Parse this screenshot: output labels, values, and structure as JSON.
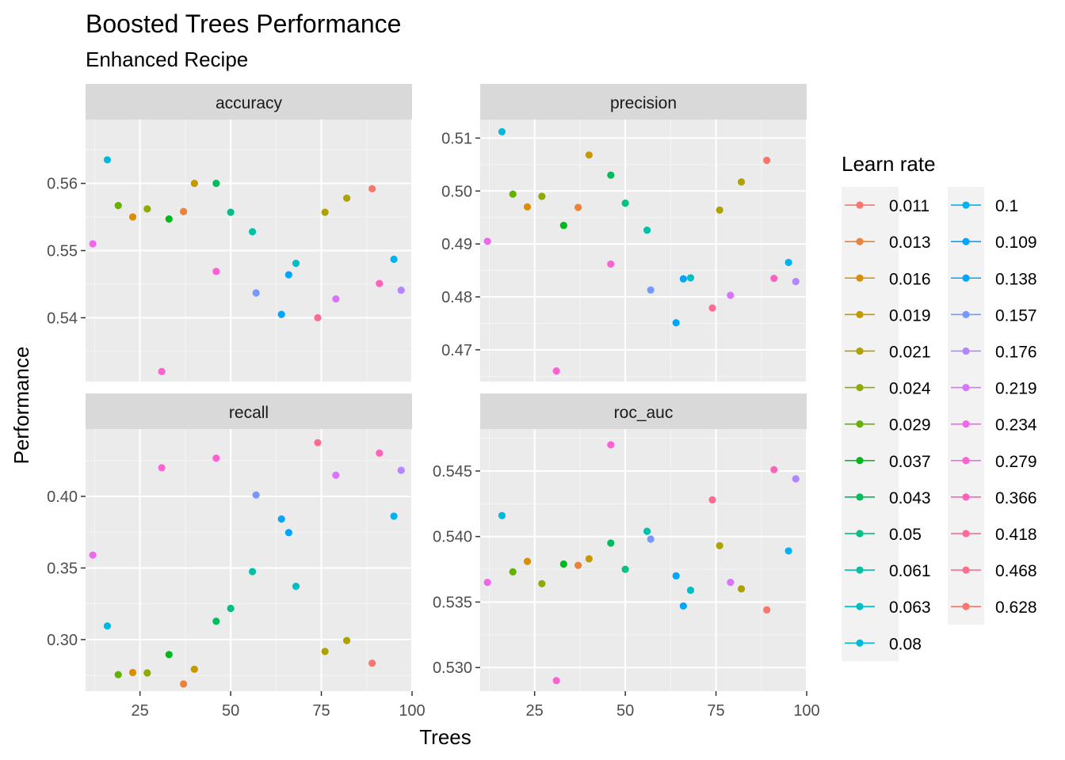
{
  "chart_data": {
    "type": "scatter",
    "title": "Boosted Trees Performance",
    "subtitle": "Enhanced Recipe",
    "xlabel": "Trees",
    "ylabel": "Performance",
    "x_ticks": [
      25,
      50,
      75,
      100
    ],
    "xlim": [
      10,
      100
    ],
    "legend": {
      "title": "Learn rate",
      "placement": "right",
      "entries": [
        {
          "label": "0.011",
          "color": "#F8766D"
        },
        {
          "label": "0.013",
          "color": "#EC8239"
        },
        {
          "label": "0.016",
          "color": "#DB8E00"
        },
        {
          "label": "0.019",
          "color": "#C79800"
        },
        {
          "label": "0.021",
          "color": "#AEA200"
        },
        {
          "label": "0.024",
          "color": "#8FAA00"
        },
        {
          "label": "0.029",
          "color": "#64B200"
        },
        {
          "label": "0.037",
          "color": "#00B81B"
        },
        {
          "label": "0.043",
          "color": "#00BD5C"
        },
        {
          "label": "0.05",
          "color": "#00C085"
        },
        {
          "label": "0.061",
          "color": "#00C1A7"
        },
        {
          "label": "0.063",
          "color": "#00BFC4"
        },
        {
          "label": "0.08",
          "color": "#00BADE"
        },
        {
          "label": "0.1",
          "color": "#00B2F3"
        },
        {
          "label": "0.109",
          "color": "#00A6FF"
        },
        {
          "label": "0.138",
          "color": "#00A5FF"
        },
        {
          "label": "0.157",
          "color": "#7698FF"
        },
        {
          "label": "0.176",
          "color": "#B385FF"
        },
        {
          "label": "0.219",
          "color": "#D874FD"
        },
        {
          "label": "0.234",
          "color": "#EF67EB"
        },
        {
          "label": "0.279",
          "color": "#FD61D3"
        },
        {
          "label": "0.366",
          "color": "#FF62BC"
        },
        {
          "label": "0.418",
          "color": "#FF6A98"
        },
        {
          "label": "0.468",
          "color": "#FF6C90"
        },
        {
          "label": "0.628",
          "color": "#F8766D"
        }
      ]
    },
    "panels": [
      {
        "name": "accuracy",
        "y_ticks": [
          "0.54",
          "0.55",
          "0.56"
        ],
        "y_tick_values": [
          0.54,
          0.55,
          0.56
        ],
        "ylim": [
          0.5305,
          0.5695
        ],
        "points": [
          {
            "x": 12,
            "y": 0.551,
            "color": "#EF67EB"
          },
          {
            "x": 16,
            "y": 0.5635,
            "color": "#00BADE"
          },
          {
            "x": 19,
            "y": 0.5567,
            "color": "#64B200"
          },
          {
            "x": 23,
            "y": 0.555,
            "color": "#DB8E00"
          },
          {
            "x": 27,
            "y": 0.5562,
            "color": "#8FAA00"
          },
          {
            "x": 31,
            "y": 0.532,
            "color": "#FD61D3"
          },
          {
            "x": 33,
            "y": 0.5547,
            "color": "#00B81B"
          },
          {
            "x": 37,
            "y": 0.5558,
            "color": "#EC8239"
          },
          {
            "x": 40,
            "y": 0.56,
            "color": "#C79800"
          },
          {
            "x": 46,
            "y": 0.56,
            "color": "#00BD5C"
          },
          {
            "x": 46,
            "y": 0.5469,
            "color": "#FD61D3"
          },
          {
            "x": 50,
            "y": 0.5557,
            "color": "#00C085"
          },
          {
            "x": 56,
            "y": 0.5528,
            "color": "#00C1A7"
          },
          {
            "x": 57,
            "y": 0.5437,
            "color": "#7698FF"
          },
          {
            "x": 64,
            "y": 0.5405,
            "color": "#00A6FF"
          },
          {
            "x": 66,
            "y": 0.5464,
            "color": "#00A5FF"
          },
          {
            "x": 68,
            "y": 0.5481,
            "color": "#00BFC4"
          },
          {
            "x": 74,
            "y": 0.54,
            "color": "#FF6C90"
          },
          {
            "x": 76,
            "y": 0.5557,
            "color": "#AEA200"
          },
          {
            "x": 79,
            "y": 0.5428,
            "color": "#D874FD"
          },
          {
            "x": 82,
            "y": 0.5578,
            "color": "#AEA200"
          },
          {
            "x": 89,
            "y": 0.5592,
            "color": "#F8766D"
          },
          {
            "x": 91,
            "y": 0.5451,
            "color": "#FF62BC"
          },
          {
            "x": 95,
            "y": 0.5487,
            "color": "#00B2F3"
          },
          {
            "x": 97,
            "y": 0.5441,
            "color": "#B385FF"
          }
        ]
      },
      {
        "name": "precision",
        "y_ticks": [
          "0.47",
          "0.48",
          "0.49",
          "0.50",
          "0.51"
        ],
        "y_tick_values": [
          0.47,
          0.48,
          0.49,
          0.5,
          0.51
        ],
        "ylim": [
          0.464,
          0.5135
        ],
        "points": [
          {
            "x": 12,
            "y": 0.4905,
            "color": "#EF67EB"
          },
          {
            "x": 16,
            "y": 0.5112,
            "color": "#00BADE"
          },
          {
            "x": 19,
            "y": 0.4994,
            "color": "#64B200"
          },
          {
            "x": 23,
            "y": 0.497,
            "color": "#DB8E00"
          },
          {
            "x": 27,
            "y": 0.499,
            "color": "#8FAA00"
          },
          {
            "x": 31,
            "y": 0.466,
            "color": "#FD61D3"
          },
          {
            "x": 33,
            "y": 0.4935,
            "color": "#00B81B"
          },
          {
            "x": 37,
            "y": 0.4969,
            "color": "#EC8239"
          },
          {
            "x": 40,
            "y": 0.5068,
            "color": "#C79800"
          },
          {
            "x": 46,
            "y": 0.503,
            "color": "#00BD5C"
          },
          {
            "x": 46,
            "y": 0.4862,
            "color": "#FD61D3"
          },
          {
            "x": 50,
            "y": 0.4977,
            "color": "#00C085"
          },
          {
            "x": 56,
            "y": 0.4926,
            "color": "#00C1A7"
          },
          {
            "x": 57,
            "y": 0.4813,
            "color": "#7698FF"
          },
          {
            "x": 64,
            "y": 0.4751,
            "color": "#00A6FF"
          },
          {
            "x": 66,
            "y": 0.4834,
            "color": "#00A5FF"
          },
          {
            "x": 68,
            "y": 0.4836,
            "color": "#00BFC4"
          },
          {
            "x": 74,
            "y": 0.4779,
            "color": "#FF6C90"
          },
          {
            "x": 76,
            "y": 0.4964,
            "color": "#AEA200"
          },
          {
            "x": 79,
            "y": 0.4803,
            "color": "#D874FD"
          },
          {
            "x": 82,
            "y": 0.5017,
            "color": "#AEA200"
          },
          {
            "x": 89,
            "y": 0.5058,
            "color": "#F8766D"
          },
          {
            "x": 91,
            "y": 0.4835,
            "color": "#FF62BC"
          },
          {
            "x": 95,
            "y": 0.4865,
            "color": "#00B2F3"
          },
          {
            "x": 97,
            "y": 0.4829,
            "color": "#B385FF"
          }
        ]
      },
      {
        "name": "recall",
        "y_ticks": [
          "0.30",
          "0.35",
          "0.40"
        ],
        "y_tick_values": [
          0.3,
          0.35,
          0.4
        ],
        "ylim": [
          0.264,
          0.447
        ],
        "points": [
          {
            "x": 12,
            "y": 0.359,
            "color": "#EF67EB"
          },
          {
            "x": 16,
            "y": 0.3095,
            "color": "#00BADE"
          },
          {
            "x": 19,
            "y": 0.2755,
            "color": "#64B200"
          },
          {
            "x": 23,
            "y": 0.277,
            "color": "#DB8E00"
          },
          {
            "x": 27,
            "y": 0.2767,
            "color": "#8FAA00"
          },
          {
            "x": 31,
            "y": 0.42,
            "color": "#FD61D3"
          },
          {
            "x": 33,
            "y": 0.2895,
            "color": "#00B81B"
          },
          {
            "x": 37,
            "y": 0.269,
            "color": "#EC8239"
          },
          {
            "x": 40,
            "y": 0.2793,
            "color": "#C79800"
          },
          {
            "x": 46,
            "y": 0.3128,
            "color": "#00BD5C"
          },
          {
            "x": 46,
            "y": 0.4267,
            "color": "#FD61D3"
          },
          {
            "x": 50,
            "y": 0.3218,
            "color": "#00C085"
          },
          {
            "x": 56,
            "y": 0.3475,
            "color": "#00C1A7"
          },
          {
            "x": 57,
            "y": 0.401,
            "color": "#7698FF"
          },
          {
            "x": 64,
            "y": 0.3842,
            "color": "#00A6FF"
          },
          {
            "x": 66,
            "y": 0.3747,
            "color": "#00A5FF"
          },
          {
            "x": 68,
            "y": 0.3372,
            "color": "#00BFC4"
          },
          {
            "x": 74,
            "y": 0.4375,
            "color": "#FF6C90"
          },
          {
            "x": 76,
            "y": 0.2917,
            "color": "#AEA200"
          },
          {
            "x": 79,
            "y": 0.4148,
            "color": "#D874FD"
          },
          {
            "x": 82,
            "y": 0.2993,
            "color": "#AEA200"
          },
          {
            "x": 89,
            "y": 0.2835,
            "color": "#F8766D"
          },
          {
            "x": 91,
            "y": 0.4302,
            "color": "#FF62BC"
          },
          {
            "x": 95,
            "y": 0.3862,
            "color": "#00B2F3"
          },
          {
            "x": 97,
            "y": 0.4182,
            "color": "#B385FF"
          }
        ]
      },
      {
        "name": "roc_auc",
        "y_ticks": [
          "0.530",
          "0.535",
          "0.540",
          "0.545"
        ],
        "y_tick_values": [
          0.53,
          0.535,
          0.54,
          0.545
        ],
        "ylim": [
          0.5282,
          0.5482
        ],
        "points": [
          {
            "x": 12,
            "y": 0.5365,
            "color": "#EF67EB"
          },
          {
            "x": 16,
            "y": 0.5416,
            "color": "#00BADE"
          },
          {
            "x": 19,
            "y": 0.5373,
            "color": "#64B200"
          },
          {
            "x": 23,
            "y": 0.5381,
            "color": "#DB8E00"
          },
          {
            "x": 27,
            "y": 0.5364,
            "color": "#8FAA00"
          },
          {
            "x": 31,
            "y": 0.529,
            "color": "#FD61D3"
          },
          {
            "x": 33,
            "y": 0.5379,
            "color": "#00B81B"
          },
          {
            "x": 37,
            "y": 0.5378,
            "color": "#EC8239"
          },
          {
            "x": 40,
            "y": 0.5383,
            "color": "#C79800"
          },
          {
            "x": 46,
            "y": 0.5395,
            "color": "#00BD5C"
          },
          {
            "x": 46,
            "y": 0.547,
            "color": "#FD61D3"
          },
          {
            "x": 50,
            "y": 0.5375,
            "color": "#00C085"
          },
          {
            "x": 56,
            "y": 0.5404,
            "color": "#00C1A7"
          },
          {
            "x": 57,
            "y": 0.5398,
            "color": "#7698FF"
          },
          {
            "x": 64,
            "y": 0.537,
            "color": "#00A6FF"
          },
          {
            "x": 66,
            "y": 0.5347,
            "color": "#00A5FF"
          },
          {
            "x": 68,
            "y": 0.5359,
            "color": "#00BFC4"
          },
          {
            "x": 74,
            "y": 0.5428,
            "color": "#FF6C90"
          },
          {
            "x": 76,
            "y": 0.5393,
            "color": "#AEA200"
          },
          {
            "x": 79,
            "y": 0.5365,
            "color": "#D874FD"
          },
          {
            "x": 82,
            "y": 0.536,
            "color": "#AEA200"
          },
          {
            "x": 89,
            "y": 0.5344,
            "color": "#F8766D"
          },
          {
            "x": 91,
            "y": 0.5451,
            "color": "#FF62BC"
          },
          {
            "x": 95,
            "y": 0.5389,
            "color": "#00B2F3"
          },
          {
            "x": 97,
            "y": 0.5444,
            "color": "#B385FF"
          }
        ]
      }
    ]
  }
}
